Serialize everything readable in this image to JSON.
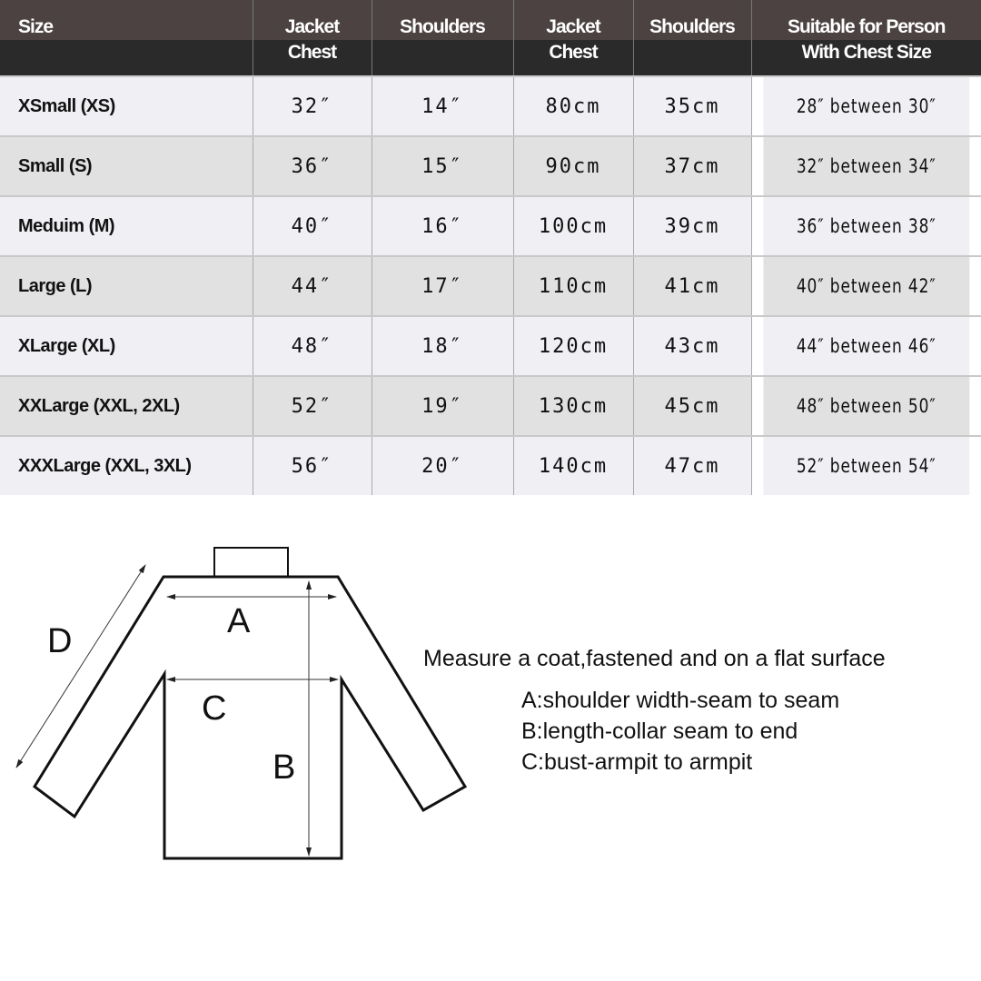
{
  "table": {
    "headers": [
      [
        "Size"
      ],
      [
        "Jacket",
        "Chest"
      ],
      [
        "Shoulders"
      ],
      [
        "Jacket",
        "Chest"
      ],
      [
        "Shoulders"
      ],
      [
        "Suitable for Person",
        "With Chest Size"
      ]
    ],
    "rows": [
      [
        "XSmall (XS)",
        "32″",
        "14″",
        "80cm",
        "35cm",
        "28″ between 30″"
      ],
      [
        "Small (S)",
        "36″",
        "15″",
        "90cm",
        "37cm",
        "32″ between 34″"
      ],
      [
        "Meduim (M)",
        "40″",
        "16″",
        "100cm",
        "39cm",
        "36″ between 38″"
      ],
      [
        "Large (L)",
        "44″",
        "17″",
        "110cm",
        "41cm",
        "40″ between 42″"
      ],
      [
        "XLarge (XL)",
        "48″",
        "18″",
        "120cm",
        "43cm",
        "44″ between 46″"
      ],
      [
        "XXLarge (XXL, 2XL)",
        "52″",
        "19″",
        "130cm",
        "45cm",
        "48″ between 50″"
      ],
      [
        "XXXLarge (XXL, 3XL)",
        "56″",
        "20″",
        "140cm",
        "47cm",
        "52″ between 54″"
      ]
    ]
  },
  "diagram": {
    "labels": {
      "a": "A",
      "b": "B",
      "c": "C",
      "d": "D"
    }
  },
  "notes": {
    "title": "Measure a coat,fastened and on a flat surface",
    "items": [
      "A:shoulder width-seam to seam",
      "B:length-collar seam to end",
      "C:bust-armpit to armpit"
    ]
  },
  "colors": {
    "header_top": "#4c4242",
    "header_bottom": "#2b2a2a",
    "row_light": "#efeff4",
    "row_dark": "#e1e1e1"
  }
}
